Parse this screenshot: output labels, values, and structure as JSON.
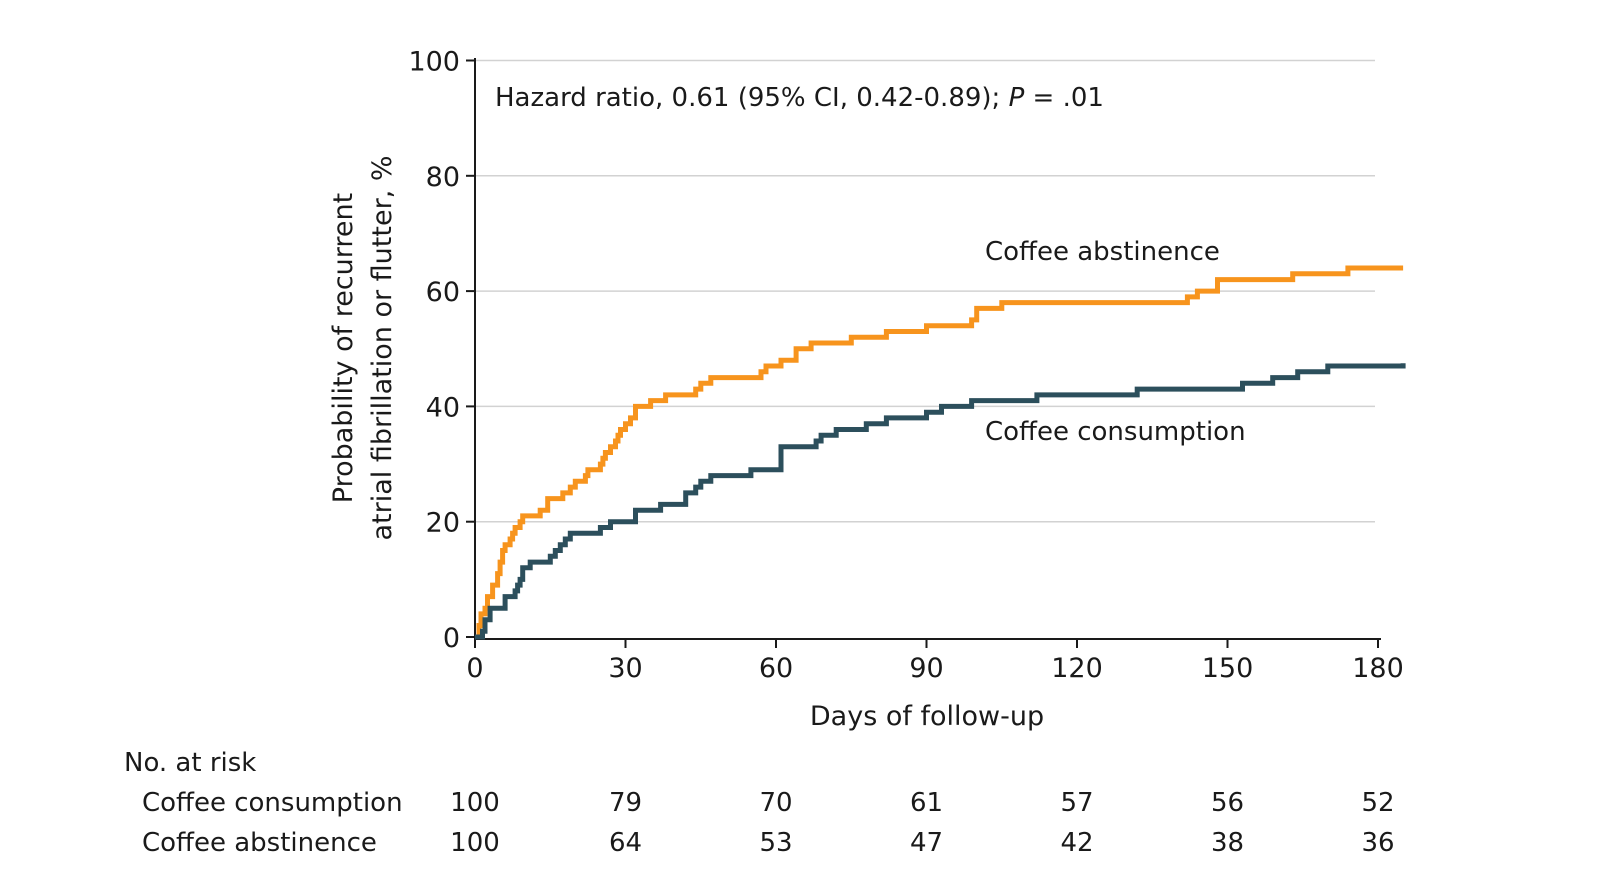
{
  "chart_data": {
    "type": "line",
    "subtype": "kaplan-meier",
    "title": "",
    "xlabel": "Days of follow-up",
    "ylabel_lines": [
      "Probability of recurrent",
      "atrial fibrillation or flutter, %"
    ],
    "xlim": [
      0,
      185
    ],
    "ylim": [
      0,
      100
    ],
    "x_ticks": [
      0,
      30,
      60,
      90,
      120,
      150,
      180
    ],
    "y_ticks": [
      0,
      20,
      40,
      60,
      80,
      100
    ],
    "grid": "horizontal",
    "annotation": {
      "prefix": "Hazard ratio, 0.61 (95% CI, 0.42-0.89); ",
      "p_label": "P",
      "suffix": " = .01"
    },
    "series": [
      {
        "name": "Coffee abstinence",
        "color": "#F7941D",
        "step_points": [
          [
            0,
            0
          ],
          [
            0.8,
            2
          ],
          [
            1.2,
            4
          ],
          [
            2,
            5
          ],
          [
            2.5,
            7
          ],
          [
            3.5,
            9
          ],
          [
            4.5,
            11
          ],
          [
            5,
            13
          ],
          [
            5.5,
            15
          ],
          [
            6,
            16
          ],
          [
            7,
            17
          ],
          [
            7.5,
            18
          ],
          [
            8,
            19
          ],
          [
            9,
            20
          ],
          [
            9.5,
            21
          ],
          [
            13,
            22
          ],
          [
            14.5,
            24
          ],
          [
            17.5,
            25
          ],
          [
            19,
            26
          ],
          [
            20,
            27
          ],
          [
            22,
            28
          ],
          [
            22.5,
            29
          ],
          [
            25,
            30
          ],
          [
            25.5,
            31
          ],
          [
            26,
            32
          ],
          [
            27,
            33
          ],
          [
            28,
            34
          ],
          [
            28.5,
            35
          ],
          [
            29,
            36
          ],
          [
            30,
            37
          ],
          [
            31,
            38
          ],
          [
            32,
            40
          ],
          [
            35,
            41
          ],
          [
            38,
            42
          ],
          [
            44,
            43
          ],
          [
            45,
            44
          ],
          [
            47,
            45
          ],
          [
            57,
            46
          ],
          [
            58,
            47
          ],
          [
            61,
            48
          ],
          [
            64,
            50
          ],
          [
            67,
            51
          ],
          [
            75,
            52
          ],
          [
            82,
            53
          ],
          [
            90,
            54
          ],
          [
            99,
            55
          ],
          [
            100,
            57
          ],
          [
            105,
            58
          ],
          [
            142,
            59
          ],
          [
            144,
            60
          ],
          [
            148,
            62
          ],
          [
            163,
            63
          ],
          [
            174,
            64
          ],
          [
            185,
            64
          ]
        ]
      },
      {
        "name": "Coffee consumption",
        "color": "#2C4F5C",
        "step_points": [
          [
            0,
            0
          ],
          [
            1.5,
            1
          ],
          [
            2,
            3
          ],
          [
            3,
            5
          ],
          [
            6,
            7
          ],
          [
            8,
            8
          ],
          [
            8.5,
            9
          ],
          [
            9,
            10
          ],
          [
            9.5,
            12
          ],
          [
            11,
            13
          ],
          [
            15,
            14
          ],
          [
            16,
            15
          ],
          [
            17,
            16
          ],
          [
            18,
            17
          ],
          [
            19,
            18
          ],
          [
            25,
            19
          ],
          [
            27,
            20
          ],
          [
            32,
            22
          ],
          [
            37,
            23
          ],
          [
            42,
            25
          ],
          [
            44,
            26
          ],
          [
            45,
            27
          ],
          [
            47,
            28
          ],
          [
            55,
            29
          ],
          [
            61,
            33
          ],
          [
            68,
            34
          ],
          [
            69,
            35
          ],
          [
            72,
            36
          ],
          [
            78,
            37
          ],
          [
            82,
            38
          ],
          [
            90,
            39
          ],
          [
            93,
            40
          ],
          [
            99,
            41
          ],
          [
            112,
            42
          ],
          [
            132,
            43
          ],
          [
            153,
            44
          ],
          [
            159,
            45
          ],
          [
            164,
            46
          ],
          [
            170,
            47
          ],
          [
            185,
            47.5
          ]
        ]
      }
    ],
    "risk_table": {
      "header": "No. at risk",
      "rows": [
        {
          "label": "Coffee consumption",
          "values": [
            100,
            79,
            70,
            61,
            57,
            56,
            52
          ]
        },
        {
          "label": "Coffee abstinence",
          "values": [
            100,
            64,
            53,
            47,
            42,
            38,
            36
          ]
        }
      ]
    }
  }
}
